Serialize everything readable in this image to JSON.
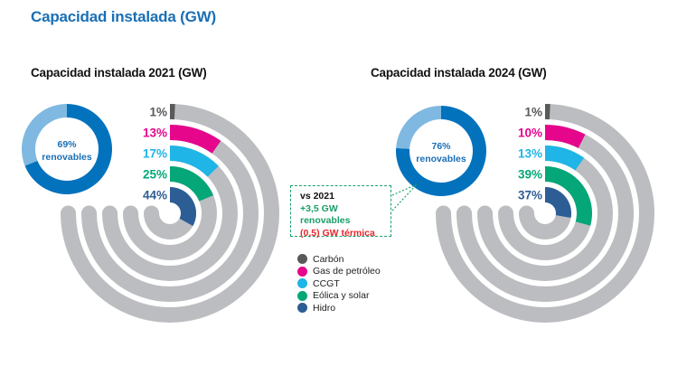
{
  "title": "Capacidad instalada (GW)",
  "annotation": {
    "line1": "vs 2021",
    "line2": "+3,5 GW renovables",
    "line3": "(0,5) GW térmica",
    "colors": {
      "line1": "#111111",
      "line2": "#1aa06a",
      "line3": "#e8272d",
      "border": "#1aa06a"
    }
  },
  "legend": [
    {
      "label": "Carbón",
      "color": "#58595b"
    },
    {
      "label": "Gas de petróleo",
      "color": "#e5068c"
    },
    {
      "label": "CCGT",
      "color": "#1fb5e6"
    },
    {
      "label": "Eólica y solar",
      "color": "#05a677"
    },
    {
      "label": "Hidro",
      "color": "#2c5d94"
    }
  ],
  "track_color": "#bcbdc0",
  "chart_data": [
    {
      "type": "radial-bar",
      "title": "Capacidad instalada 2021 (GW)",
      "categories": [
        "Carbón",
        "Gas de petróleo",
        "CCGT",
        "Eólica y solar",
        "Hidro"
      ],
      "values": [
        1,
        13,
        17,
        25,
        44
      ],
      "labels": [
        "1%",
        "13%",
        "17%",
        "25%",
        "44%"
      ],
      "unit": "%",
      "renewables": {
        "value": 69,
        "label": "69%",
        "caption": "renovables",
        "colors": {
          "renewable": "#0272bd",
          "other": "#7fb9e1"
        }
      }
    },
    {
      "type": "radial-bar",
      "title": "Capacidad instalada 2024 (GW)",
      "categories": [
        "Carbón",
        "Gas de petróleo",
        "CCGT",
        "Eólica y solar",
        "Hidro"
      ],
      "values": [
        1,
        10,
        13,
        39,
        37
      ],
      "labels": [
        "1%",
        "10%",
        "13%",
        "39%",
        "37%"
      ],
      "unit": "%",
      "renewables": {
        "value": 76,
        "label": "76%",
        "caption": "renovables",
        "colors": {
          "renewable": "#0272bd",
          "other": "#7fb9e1"
        }
      }
    }
  ]
}
